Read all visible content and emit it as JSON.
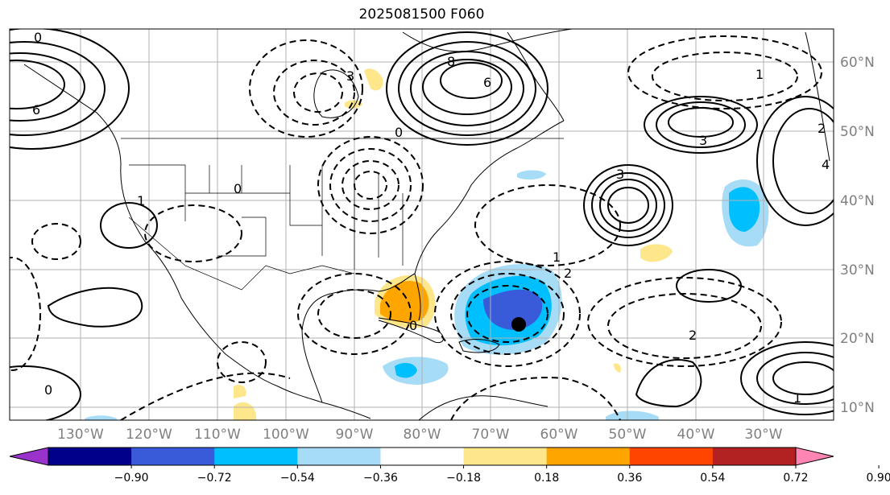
{
  "title": "2025081500 F060",
  "lon_ticks": [
    "130°W",
    "120°W",
    "110°W",
    "100°W",
    "90°W",
    "80°W",
    "70°W",
    "60°W",
    "50°W",
    "40°W",
    "30°W"
  ],
  "lat_ticks": [
    "60°N",
    "50°N",
    "40°N",
    "30°N",
    "20°N",
    "10°N"
  ],
  "colorbar": {
    "tick_labels": [
      "−0.90",
      "−0.72",
      "−0.54",
      "−0.36",
      "−0.18",
      "0.18",
      "0.36",
      "0.54",
      "0.72",
      "0.90"
    ],
    "colors": [
      "#9933cc",
      "#00008b",
      "#3a5bd9",
      "#00bfff",
      "#a6dcf5",
      "#ffffff",
      "#fee68a",
      "#ffa500",
      "#ff4500",
      "#b22222",
      "#ff85b3"
    ]
  },
  "contour_labels": [
    "0",
    "1",
    "2",
    "3",
    "4",
    "6",
    "8"
  ],
  "icons": {
    "storm_marker": "black-dot"
  }
}
